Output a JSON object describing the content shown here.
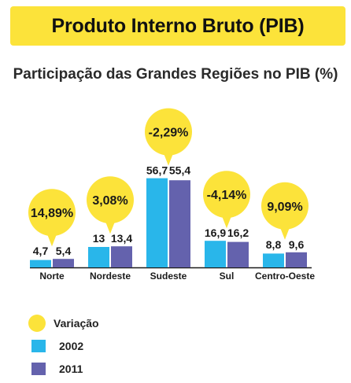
{
  "header": {
    "title": "Produto Interno Bruto (PIB)"
  },
  "colors": {
    "banner": "#fce33a",
    "bubble": "#fce33a",
    "series_2002": "#29b6ea",
    "series_2011": "#6462ad",
    "axis": "#1a1a1a"
  },
  "chart_data": {
    "type": "bar",
    "title": "Participação das Grandes Regiões no PIB (%)",
    "xlabel": "",
    "ylabel": "",
    "categories": [
      "Norte",
      "Nordeste",
      "Sudeste",
      "Sul",
      "Centro-Oeste"
    ],
    "series": [
      {
        "name": "2002",
        "values": [
          4.7,
          13,
          56.7,
          16.9,
          8.8
        ],
        "labels": [
          "4,7",
          "13",
          "56,7",
          "16,9",
          "8,8"
        ]
      },
      {
        "name": "2011",
        "values": [
          5.4,
          13.4,
          55.4,
          16.2,
          9.6
        ],
        "labels": [
          "5,4",
          "13,4",
          "55,4",
          "16,2",
          "9,6"
        ]
      }
    ],
    "variation": {
      "name": "Variação",
      "values": [
        14.89,
        3.08,
        -2.29,
        -4.14,
        9.09
      ],
      "labels": [
        "14,89%",
        "3,08%",
        "-2,29%",
        "-4,14%",
        "9,09%"
      ]
    },
    "grid": false,
    "legend_position": "bottom-left"
  },
  "legend": {
    "variation_label": "Variação",
    "series_2002_label": "2002",
    "series_2011_label": "2011"
  }
}
